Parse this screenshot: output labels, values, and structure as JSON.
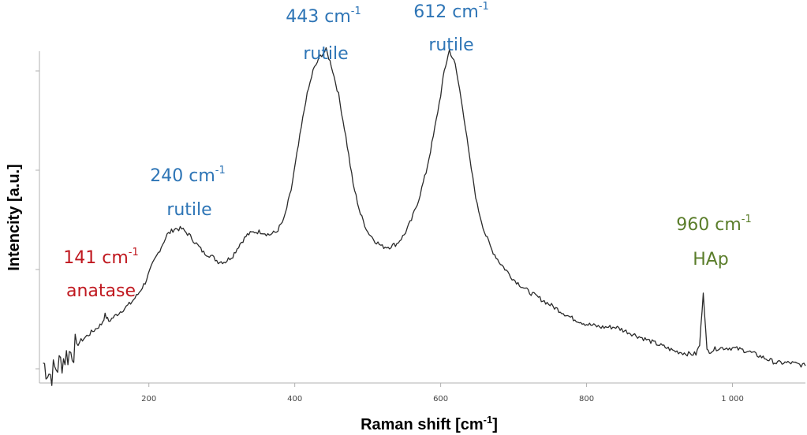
{
  "chart_data": {
    "type": "line",
    "xlabel": "Raman shift [cm",
    "xlabel_sup": "-1",
    "xlabel_end": "]",
    "ylabel": "Intencity [a.u.]",
    "xlim": [
      50,
      1100
    ],
    "x_ticks": [
      200,
      400,
      600,
      800,
      1000
    ],
    "x_tick_labels": [
      "200",
      "400",
      "600",
      "800",
      "1 000"
    ],
    "y_tick_count": 4,
    "grid": false,
    "series": [
      {
        "color": "#2a2a2a",
        "x": [
          55,
          65,
          75,
          85,
          95,
          105,
          115,
          125,
          135,
          140,
          145,
          155,
          165,
          175,
          185,
          195,
          205,
          215,
          225,
          235,
          245,
          255,
          265,
          275,
          285,
          295,
          305,
          315,
          325,
          335,
          345,
          355,
          365,
          375,
          385,
          395,
          405,
          415,
          425,
          435,
          443,
          450,
          460,
          470,
          480,
          490,
          500,
          510,
          520,
          530,
          540,
          550,
          560,
          570,
          580,
          590,
          600,
          605,
          612,
          620,
          630,
          640,
          650,
          660,
          670,
          680,
          690,
          700,
          720,
          740,
          760,
          780,
          800,
          820,
          840,
          860,
          880,
          900,
          920,
          940,
          950,
          955,
          960,
          965,
          970,
          980,
          1000,
          1020,
          1040,
          1060,
          1080,
          1100
        ],
        "y": [
          0.02,
          -0.02,
          0.01,
          0.04,
          0.06,
          0.09,
          0.11,
          0.13,
          0.15,
          0.18,
          0.16,
          0.18,
          0.2,
          0.22,
          0.25,
          0.29,
          0.35,
          0.4,
          0.45,
          0.47,
          0.47,
          0.45,
          0.42,
          0.39,
          0.38,
          0.36,
          0.36,
          0.38,
          0.42,
          0.45,
          0.46,
          0.46,
          0.45,
          0.46,
          0.5,
          0.6,
          0.75,
          0.9,
          1.0,
          1.05,
          1.07,
          1.02,
          0.92,
          0.78,
          0.62,
          0.52,
          0.46,
          0.43,
          0.41,
          0.41,
          0.42,
          0.45,
          0.5,
          0.57,
          0.66,
          0.78,
          0.92,
          1.0,
          1.07,
          1.02,
          0.88,
          0.7,
          0.55,
          0.46,
          0.4,
          0.36,
          0.33,
          0.3,
          0.26,
          0.23,
          0.2,
          0.17,
          0.15,
          0.14,
          0.14,
          0.12,
          0.1,
          0.08,
          0.06,
          0.05,
          0.05,
          0.08,
          0.26,
          0.06,
          0.06,
          0.07,
          0.07,
          0.06,
          0.04,
          0.02,
          0.02,
          0.01
        ]
      }
    ],
    "annotations": [
      {
        "key": "141",
        "x": 141,
        "value": "141 cm",
        "sup": "-1",
        "label": "anatase",
        "color": "#c0181f"
      },
      {
        "key": "240",
        "x": 240,
        "value": "240 cm",
        "sup": "-1",
        "label": "rutile",
        "color": "#2e75b6"
      },
      {
        "key": "443",
        "x": 443,
        "value": "443 cm",
        "sup": "-1",
        "label": "rutile",
        "color": "#2e75b6"
      },
      {
        "key": "612",
        "x": 612,
        "value": "612 cm",
        "sup": "-1",
        "label": "rutile",
        "color": "#2e75b6"
      },
      {
        "key": "960",
        "x": 960,
        "value": "960 cm",
        "sup": "-1",
        "label": "HAp",
        "color": "#5a7d2a"
      }
    ]
  }
}
